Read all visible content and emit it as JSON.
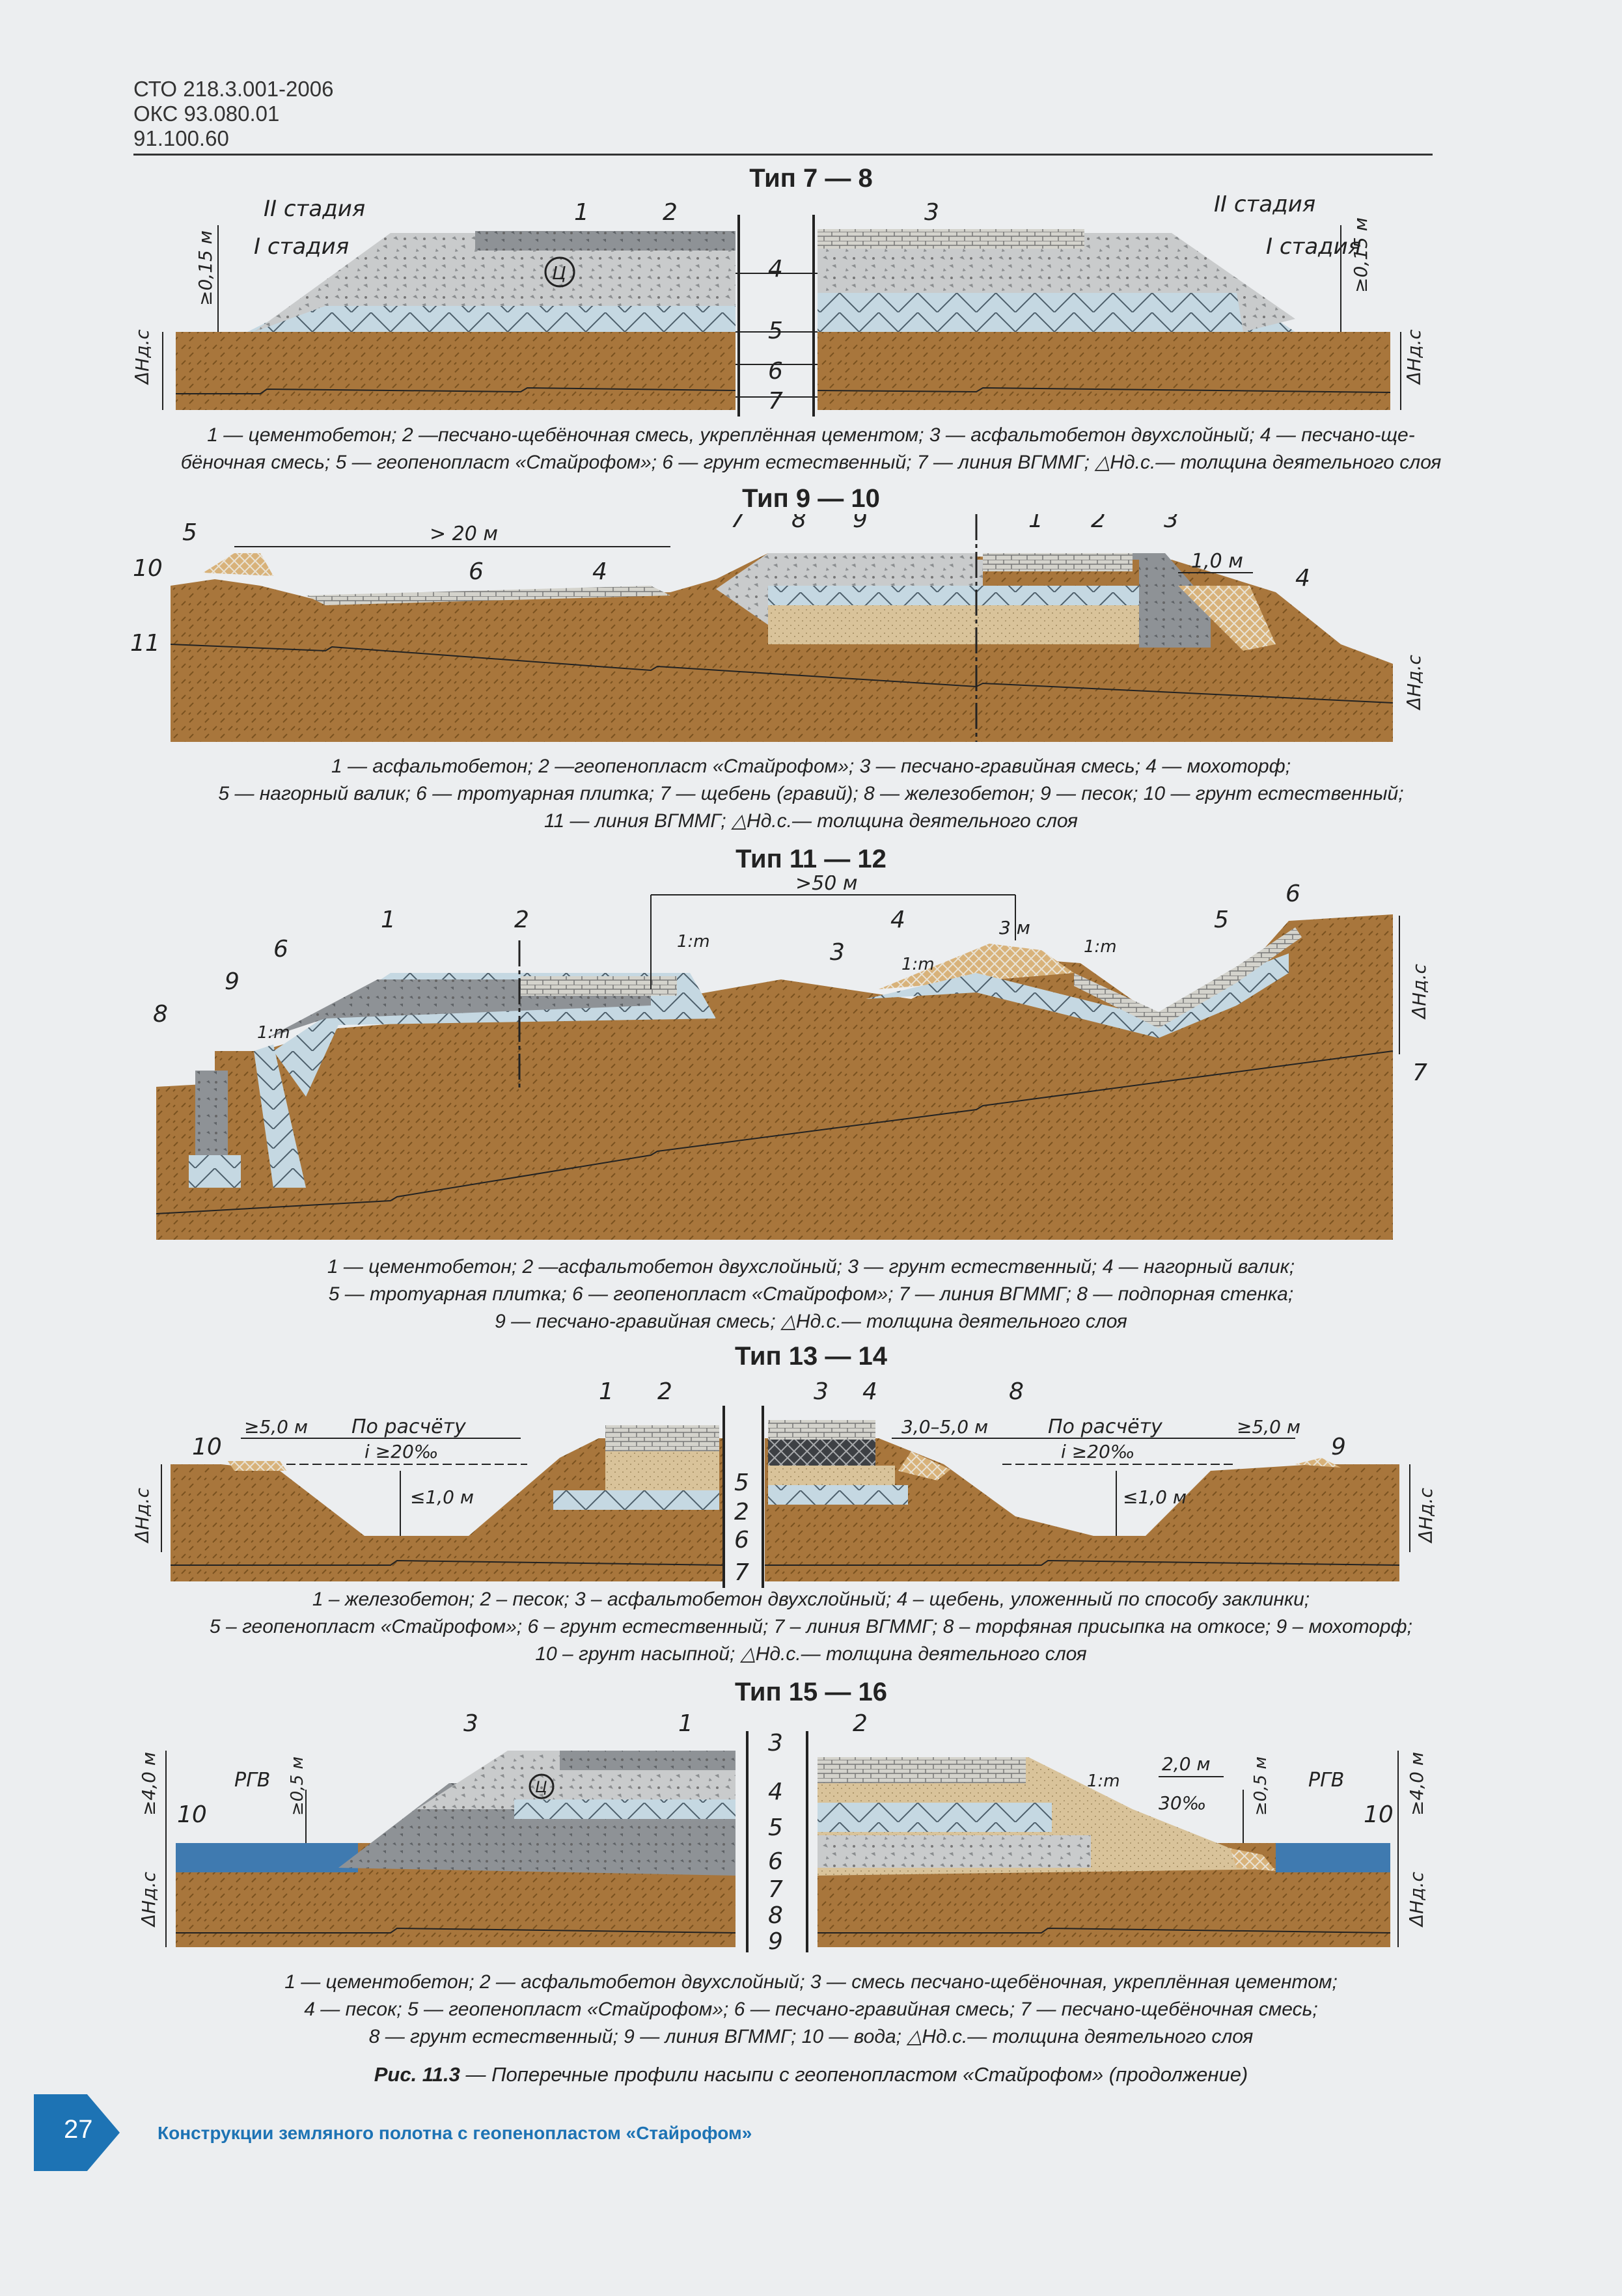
{
  "header": {
    "line1": "СТО 218.3.001-2006",
    "line2": "ОКС 93.080.01",
    "line3": "91.100.60"
  },
  "colors": {
    "soil": "#a8763c",
    "concrete": "#8e9296",
    "foam": "#c5d8e2",
    "sand": "#d9c39a",
    "water": "#3f7ab0",
    "accent": "#1d73b4"
  },
  "sections": [
    {
      "title": "Тип 7 — 8",
      "labels": {
        "n1": "1",
        "n2": "2",
        "n3": "3",
        "n4": "4",
        "n5": "5",
        "n6": "6",
        "n7": "7",
        "stage2": "II стадия",
        "stage1": "I стадия",
        "dim015": "≥0,15 м",
        "dh": "ΔHд.с",
        "c": "Ц"
      },
      "caption": [
        "1 — цементобетон; 2 —песчано-щебёночная смесь, укреплённая цементом; 3 — асфальтобетон двухслойный; 4 — песчано-ще-",
        "бёночная смесь; 5 — геопенопласт «Стайрофом»; 6 — грунт естественный; 7 — линия ВГММГ; △Hд.с.— толщина деятельного слоя"
      ]
    },
    {
      "title": "Тип 9 — 10",
      "labels": {
        "n1": "1",
        "n2": "2",
        "n3": "3",
        "n4": "4",
        "n5": "5",
        "n6": "6",
        "n7": "7",
        "n8": "8",
        "n9": "9",
        "n10": "10",
        "n11": "11",
        "dim20": "> 20 м",
        "dim10": "1,0 м",
        "dh": "ΔHд.с"
      },
      "caption": [
        "1 — асфальтобетон; 2 —геопенопласт «Стайрофом»; 3 — песчано-гравийная смесь; 4 — мохоторф;",
        "5 — нагорный валик; 6 — тротуарная плитка; 7 — щебень (гравий); 8 — железобетон; 9 — песок; 10 — грунт естественный;",
        "11 — линия ВГММГ; △Hд.с.— толщина деятельного слоя"
      ]
    },
    {
      "title": "Тип 11 — 12",
      "labels": {
        "n1": "1",
        "n2": "2",
        "n3": "3",
        "n4": "4",
        "n5": "5",
        "n6": "6",
        "n7": "7",
        "n8": "8",
        "n9": "9",
        "dim50": ">50 м",
        "dim3": "3 м",
        "slope": "1:m",
        "dh": "ΔHд.с"
      },
      "caption": [
        "1 — цементобетон; 2 —асфальтобетон двухслойный; 3 — грунт естественный; 4 — нагорный валик;",
        "5 — тротуарная плитка; 6 — геопенопласт «Стайрофом»; 7 — линия ВГММГ; 8 — подпорная стенка;",
        "9 — песчано-гравийная смесь; △Hд.с.— толщина деятельного слоя"
      ]
    },
    {
      "title": "Тип 13 — 14",
      "labels": {
        "n1": "1",
        "n2": "2",
        "n3": "3",
        "n4": "4",
        "n5": "5",
        "n6": "6",
        "n7": "7",
        "n8": "8",
        "n9": "9",
        "n10": "10",
        "dim5": "≥5,0 м",
        "calc": "По расчёту",
        "grade": "i ≥20‰",
        "dim1": "≤1,0 м",
        "dim35": "3,0–5,0 м",
        "dh": "ΔHд.с"
      },
      "caption": [
        "1 – железобетон; 2 – песок; 3 – асфальтобетон двухслойный; 4 – щебень, уложенный по способу заклинки;",
        "5 – геопенопласт «Стайрофом»; 6 – грунт естественный; 7 – линия ВГММГ; 8 – торфяная присыпка на откосе; 9 – мохоторф;",
        "10 – грунт насыпной; △Hд.с.— толщина деятельного слоя"
      ]
    },
    {
      "title": "Тип 15 — 16",
      "labels": {
        "n1": "1",
        "n2": "2",
        "n3": "3",
        "n4": "4",
        "n5": "5",
        "n6": "6",
        "n7": "7",
        "n8": "8",
        "n9": "9",
        "n10": "10",
        "rgv": "РГВ",
        "dim05": "≥0,5 м",
        "dim40": "≥4,0 м",
        "dim20": "2,0 м",
        "grade": "30‰",
        "slope": "1:m",
        "dh": "ΔHд.с",
        "c": "Ц"
      },
      "caption": [
        "1 — цементобетон; 2 — асфальтобетон двухслойный; 3 — смесь песчано-щебёночная, укреплённая цементом;",
        "4 — песок; 5 — геопенопласт «Стайрофом»; 6 — песчано-гравийная смесь; 7 — песчано-щебёночная смесь;",
        "8 — грунт естественный; 9 — линия ВГММГ; 10 — вода; △Hд.с.— толщина деятельного слоя"
      ]
    }
  ],
  "figure": {
    "number": "Рис. 11.3",
    "text": " — Поперечные профили насыпи с геопенопластом «Стайрофом» (продолжение)"
  },
  "footer": {
    "page": "27",
    "title": "Конструкции земляного полотна с геопенопластом «Стайрофом»"
  }
}
